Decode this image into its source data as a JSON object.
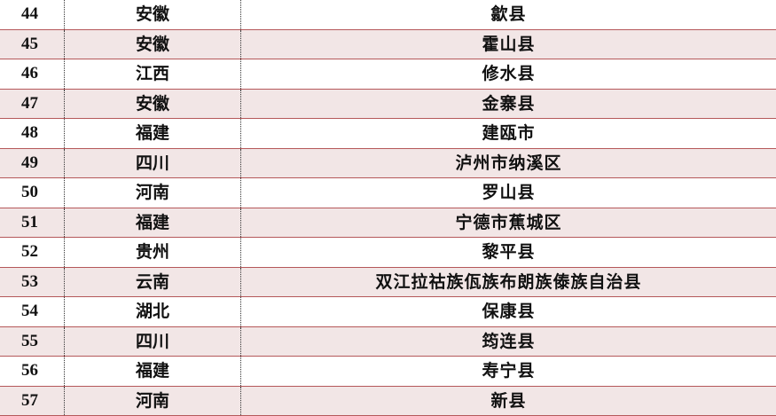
{
  "colors": {
    "row_alt_bg": "#f2e6e6",
    "row_border": "#b5585a"
  },
  "rows": [
    {
      "no": "44",
      "province": "安徽",
      "county": "歙县"
    },
    {
      "no": "45",
      "province": "安徽",
      "county": "霍山县"
    },
    {
      "no": "46",
      "province": "江西",
      "county": "修水县"
    },
    {
      "no": "47",
      "province": "安徽",
      "county": "金寨县"
    },
    {
      "no": "48",
      "province": "福建",
      "county": "建瓯市"
    },
    {
      "no": "49",
      "province": "四川",
      "county": "泸州市纳溪区"
    },
    {
      "no": "50",
      "province": "河南",
      "county": "罗山县"
    },
    {
      "no": "51",
      "province": "福建",
      "county": "宁德市蕉城区"
    },
    {
      "no": "52",
      "province": "贵州",
      "county": "黎平县"
    },
    {
      "no": "53",
      "province": "云南",
      "county": "双江拉祜族佤族布朗族傣族自治县"
    },
    {
      "no": "54",
      "province": "湖北",
      "county": "保康县"
    },
    {
      "no": "55",
      "province": "四川",
      "county": "筠连县"
    },
    {
      "no": "56",
      "province": "福建",
      "county": "寿宁县"
    },
    {
      "no": "57",
      "province": "河南",
      "county": "新县"
    }
  ]
}
